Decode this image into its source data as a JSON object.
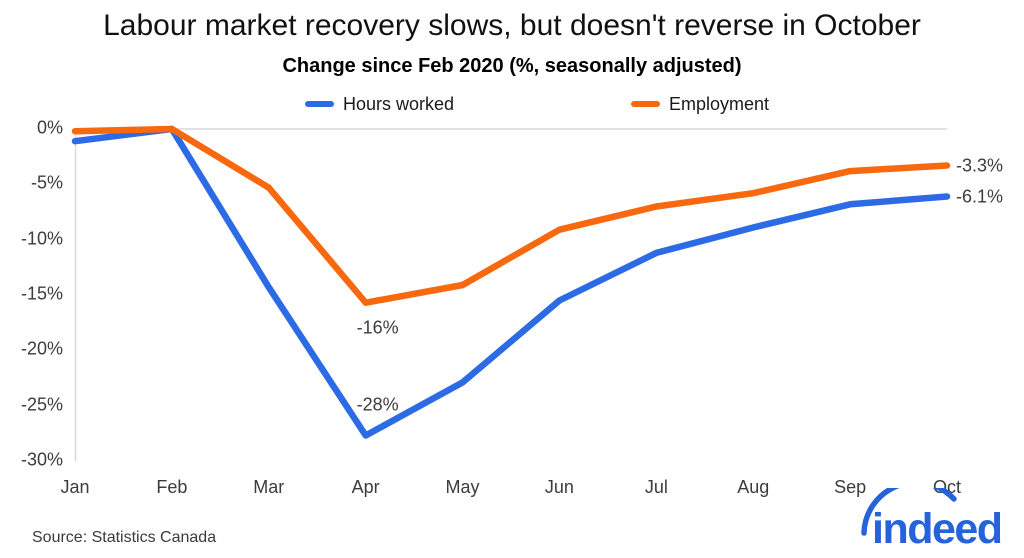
{
  "header": {
    "title": "Labour market recovery slows, but doesn't reverse in October",
    "subtitle": "Change since Feb 2020 (%, seasonally adjusted)"
  },
  "chart_data": {
    "type": "line",
    "x": [
      "Jan",
      "Feb",
      "Mar",
      "Apr",
      "May",
      "Jun",
      "Jul",
      "Aug",
      "Sep",
      "Oct"
    ],
    "series": [
      {
        "name": "Hours worked",
        "color": "#2d6be4",
        "values": [
          -1.1,
          0,
          -14.3,
          -27.7,
          -22.9,
          -15.5,
          -11.2,
          -8.9,
          -6.8,
          -6.1
        ]
      },
      {
        "name": "Employment",
        "color": "#f8690f",
        "values": [
          -0.2,
          0,
          -5.3,
          -15.7,
          -14.1,
          -9.1,
          -7.0,
          -5.8,
          -3.8,
          -3.3
        ]
      }
    ],
    "ylim": [
      -30,
      0
    ],
    "ytick_values": [
      0,
      -5,
      -10,
      -15,
      -20,
      -25,
      -30
    ],
    "ytick_labels": [
      "0%",
      "-5%",
      "-10%",
      "-15%",
      "-20%",
      "-25%",
      "-30%"
    ],
    "grid": "horizontal gridline at 0% only, faint left axis line",
    "legend_position": "top-center",
    "annotations": [
      {
        "text": "-16%",
        "series_index": 1,
        "month_index": 3,
        "placement": "below"
      },
      {
        "text": "-28%",
        "series_index": 0,
        "month_index": 3,
        "placement": "above"
      },
      {
        "text": "-3.3%",
        "series_index": 1,
        "month_index": 9,
        "placement": "right"
      },
      {
        "text": "-6.1%",
        "series_index": 0,
        "month_index": 9,
        "placement": "right"
      }
    ]
  },
  "footer": {
    "source": "Source: Statistics Canada",
    "logo_text": "indeed",
    "logo_color": "#2563db"
  }
}
